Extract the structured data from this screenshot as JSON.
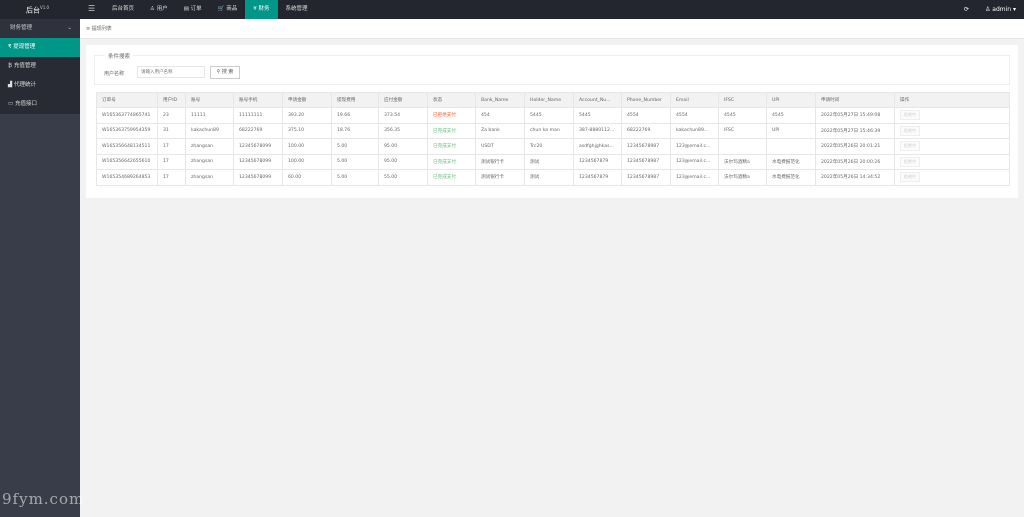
{
  "watermark": "9fym.com",
  "header": {
    "logo": "后台",
    "version": "V1.0",
    "nav": [
      "后台首页",
      "♙ 用户",
      "▤ 订单",
      "🛒 商品",
      "¥ 财务",
      "系统管理"
    ],
    "active_nav": 4,
    "refresh_icon": "refresh-icon",
    "user": "admin"
  },
  "sidebar": {
    "group": "财务管理",
    "items": [
      "₹ 提现管理",
      "₿ 充值管理",
      "▟ 代理统计",
      "▭ 充值接口"
    ],
    "active": 0
  },
  "tabbar": {
    "current": "提现列表"
  },
  "search": {
    "legend": "条件搜索",
    "label": "用户名称",
    "placeholder": "请输入用户名称",
    "button": "搜 索"
  },
  "table": {
    "headers": [
      "订单号",
      "用户ID",
      "账号",
      "账号手机",
      "申请金额",
      "提现费用",
      "应付金额",
      "状态",
      "Bank_Name",
      "Holder_Name",
      "Account_Nu...",
      "Phone_Number",
      "Email",
      "IFSC",
      "UPI",
      "申请时间",
      "操作"
    ],
    "rows": [
      [
        "W165363774865741",
        "23",
        "11111",
        "11111111",
        "393.20",
        "19.66",
        "373.54",
        "已拒绝支付",
        "454",
        "5445",
        "5445",
        "4554",
        "4554",
        "4545",
        "4545",
        "2022年05月27日 15:49:08",
        "拒绝中"
      ],
      [
        "W165363759954359",
        "31",
        "kakachun89",
        "68222769",
        "375.10",
        "18.76",
        "356.35",
        "已完成支付",
        "Za bank",
        "chun ka man",
        "387-8880112...",
        "68222769",
        "kakachun89...",
        "IFSC",
        "UPI",
        "2022年05月27日 15:46:39",
        "拒绝中"
      ],
      [
        "W165356648134511",
        "17",
        "zhangsan",
        "12345678099",
        "100.00",
        "5.00",
        "95.00",
        "已完成支付",
        "USDT",
        "Trc20",
        "asdfghjghkas...",
        "12345678987",
        "123@email.c...",
        "",
        "",
        "2022年05月26日 20:01:21",
        "拒绝中"
      ],
      [
        "W165356642655610",
        "17",
        "zhangsan",
        "12345678099",
        "100.00",
        "5.00",
        "95.00",
        "已完成支付",
        "测试银行卡",
        "测试",
        "1234567879",
        "12345678987",
        "123@email.c...",
        "沃尔玛酒精a",
        "水电费报范化",
        "2022年05月26日 20:00:26",
        "拒绝中"
      ],
      [
        "W165354689264853",
        "17",
        "zhangsan",
        "12345678099",
        "60.00",
        "5.00",
        "55.00",
        "已完成支付",
        "测试银行卡",
        "测试",
        "1234567879",
        "12345678987",
        "123@email.c...",
        "沃尔玛酒精a",
        "水电费报范化",
        "2022年05月26日 14:34:52",
        "拒绝中"
      ]
    ],
    "status_colors": {
      "已拒绝支付": "#ff5722",
      "已完成支付": "#5fb878"
    }
  }
}
